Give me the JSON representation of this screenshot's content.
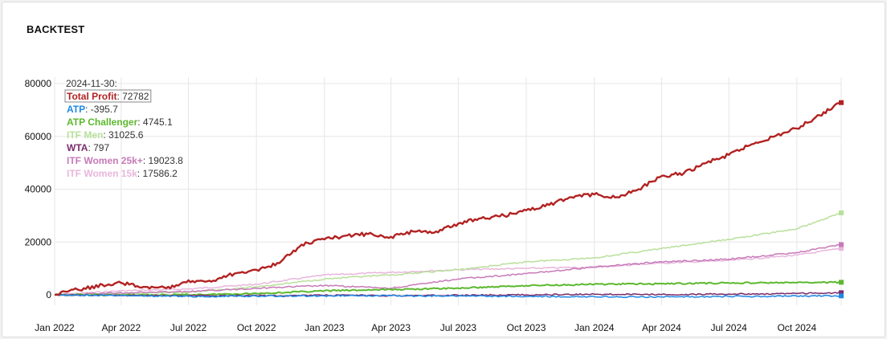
{
  "card": {
    "title": "BACKTEST"
  },
  "colors": {
    "total_profit": "#b22222",
    "atp": "#1e88e5",
    "atp_challenger": "#5cb82e",
    "itf_men": "#b8e09a",
    "wta": "#7b2d6e",
    "itf_women_25k": "#c77ab8",
    "itf_women_15k": "#e8b6dc",
    "grid": "#e6e6e6"
  },
  "chart_data": {
    "type": "line",
    "title": "",
    "xlabel": "",
    "ylabel": "",
    "ylim": [
      -1000,
      80000
    ],
    "x_range": [
      "2022-01-01",
      "2024-11-30"
    ],
    "grid": true,
    "legend_placement": "top-left",
    "x_ticks": [
      "Jan 2022",
      "Apr 2022",
      "Jul 2022",
      "Oct 2022",
      "Jan 2023",
      "Apr 2023",
      "Jul 2023",
      "Oct 2023",
      "Jan 2024",
      "Apr 2024",
      "Jul 2024",
      "Oct 2024"
    ],
    "y_ticks": [
      "0",
      "20000",
      "40000",
      "60000",
      "80000"
    ],
    "legend": {
      "date": "2024-11-30:",
      "entries": [
        {
          "name": "Total Profit",
          "value": "72782",
          "color_key": "total_profit",
          "highlighted": true
        },
        {
          "name": "ATP",
          "value": "-395.7",
          "color_key": "atp",
          "highlighted": false
        },
        {
          "name": "ATP Challenger",
          "value": "4745.1",
          "color_key": "atp_challenger",
          "highlighted": false
        },
        {
          "name": "ITF Men",
          "value": "31025.6",
          "color_key": "itf_men",
          "highlighted": false
        },
        {
          "name": "WTA",
          "value": "797",
          "color_key": "wta",
          "highlighted": false
        },
        {
          "name": "ITF Women 25k+",
          "value": "19023.8",
          "color_key": "itf_women_25k",
          "highlighted": false
        },
        {
          "name": "ITF Women 15k",
          "value": "17586.2",
          "color_key": "itf_women_15k",
          "highlighted": false
        }
      ]
    },
    "series": [
      {
        "name": "ITF Women 15k",
        "color_key": "itf_women_15k",
        "width": 1.5,
        "points": [
          [
            "2022-01-01",
            0
          ],
          [
            "2022-04-01",
            1500
          ],
          [
            "2022-07-01",
            2200
          ],
          [
            "2022-10-01",
            4000
          ],
          [
            "2023-01-01",
            7500
          ],
          [
            "2023-04-01",
            8500
          ],
          [
            "2023-07-01",
            9500
          ],
          [
            "2023-10-01",
            10000
          ],
          [
            "2024-01-01",
            10500
          ],
          [
            "2024-04-01",
            12000
          ],
          [
            "2024-07-01",
            13000
          ],
          [
            "2024-10-01",
            15000
          ],
          [
            "2024-11-30",
            17586.2
          ]
        ]
      },
      {
        "name": "ITF Men",
        "color_key": "itf_men",
        "width": 1.5,
        "points": [
          [
            "2022-01-01",
            0
          ],
          [
            "2022-04-01",
            500
          ],
          [
            "2022-07-01",
            1000
          ],
          [
            "2022-10-01",
            3000
          ],
          [
            "2023-01-01",
            6000
          ],
          [
            "2023-04-01",
            7500
          ],
          [
            "2023-07-01",
            9500
          ],
          [
            "2023-10-01",
            12500
          ],
          [
            "2024-01-01",
            14000
          ],
          [
            "2024-04-01",
            17500
          ],
          [
            "2024-07-01",
            21000
          ],
          [
            "2024-10-01",
            25000
          ],
          [
            "2024-11-30",
            31025.6
          ]
        ]
      },
      {
        "name": "ITF Women 25k+",
        "color_key": "itf_women_25k",
        "width": 1.5,
        "points": [
          [
            "2022-01-01",
            0
          ],
          [
            "2022-04-01",
            800
          ],
          [
            "2022-07-01",
            1200
          ],
          [
            "2022-10-01",
            2500
          ],
          [
            "2023-01-01",
            3500
          ],
          [
            "2023-04-01",
            2500
          ],
          [
            "2023-07-01",
            6000
          ],
          [
            "2023-10-01",
            8000
          ],
          [
            "2024-01-01",
            10500
          ],
          [
            "2024-04-01",
            12500
          ],
          [
            "2024-07-01",
            13500
          ],
          [
            "2024-10-01",
            16000
          ],
          [
            "2024-11-30",
            19023.8
          ]
        ]
      },
      {
        "name": "ATP Challenger",
        "color_key": "atp_challenger",
        "width": 2,
        "points": [
          [
            "2022-01-01",
            0
          ],
          [
            "2022-04-01",
            -100
          ],
          [
            "2022-07-01",
            0
          ],
          [
            "2022-10-01",
            500
          ],
          [
            "2023-01-01",
            1500
          ],
          [
            "2023-04-01",
            2000
          ],
          [
            "2023-07-01",
            2500
          ],
          [
            "2023-10-01",
            3500
          ],
          [
            "2024-01-01",
            4000
          ],
          [
            "2024-04-01",
            4200
          ],
          [
            "2024-07-01",
            4500
          ],
          [
            "2024-10-01",
            4600
          ],
          [
            "2024-11-30",
            4745.1
          ]
        ]
      },
      {
        "name": "WTA",
        "color_key": "wta",
        "width": 1.5,
        "points": [
          [
            "2022-01-01",
            0
          ],
          [
            "2022-04-01",
            -200
          ],
          [
            "2022-07-01",
            -400
          ],
          [
            "2022-10-01",
            -300
          ],
          [
            "2023-01-01",
            -200
          ],
          [
            "2023-04-01",
            -300
          ],
          [
            "2023-07-01",
            -200
          ],
          [
            "2023-10-01",
            0
          ],
          [
            "2024-01-01",
            200
          ],
          [
            "2024-04-01",
            100
          ],
          [
            "2024-07-01",
            300
          ],
          [
            "2024-10-01",
            500
          ],
          [
            "2024-11-30",
            797
          ]
        ]
      },
      {
        "name": "ATP",
        "color_key": "atp",
        "width": 1.5,
        "points": [
          [
            "2022-01-01",
            0
          ],
          [
            "2022-04-01",
            -300
          ],
          [
            "2022-07-01",
            -600
          ],
          [
            "2022-10-01",
            -500
          ],
          [
            "2023-01-01",
            -400
          ],
          [
            "2023-04-01",
            -300
          ],
          [
            "2023-07-01",
            -500
          ],
          [
            "2023-10-01",
            -600
          ],
          [
            "2024-01-01",
            -700
          ],
          [
            "2024-04-01",
            -800
          ],
          [
            "2024-07-01",
            -600
          ],
          [
            "2024-10-01",
            -500
          ],
          [
            "2024-11-30",
            -395.7
          ]
        ]
      },
      {
        "name": "Total Profit",
        "color_key": "total_profit",
        "width": 2.4,
        "points": [
          [
            "2022-01-01",
            0
          ],
          [
            "2022-02-01",
            2000
          ],
          [
            "2022-03-15",
            4000
          ],
          [
            "2022-04-01",
            4500
          ],
          [
            "2022-05-01",
            3000
          ],
          [
            "2022-06-01",
            2500
          ],
          [
            "2022-07-01",
            5500
          ],
          [
            "2022-08-01",
            5000
          ],
          [
            "2022-09-01",
            8000
          ],
          [
            "2022-10-01",
            9500
          ],
          [
            "2022-11-01",
            12000
          ],
          [
            "2022-12-01",
            19000
          ],
          [
            "2023-01-01",
            21000
          ],
          [
            "2023-02-01",
            22500
          ],
          [
            "2023-03-01",
            23000
          ],
          [
            "2023-04-01",
            22000
          ],
          [
            "2023-05-01",
            24000
          ],
          [
            "2023-06-01",
            24000
          ],
          [
            "2023-07-01",
            27000
          ],
          [
            "2023-08-01",
            29000
          ],
          [
            "2023-09-01",
            30000
          ],
          [
            "2023-10-01",
            32000
          ],
          [
            "2023-11-01",
            34000
          ],
          [
            "2023-12-01",
            37000
          ],
          [
            "2024-01-01",
            38000
          ],
          [
            "2024-02-01",
            37000
          ],
          [
            "2024-03-01",
            40000
          ],
          [
            "2024-04-01",
            45000
          ],
          [
            "2024-05-01",
            46000
          ],
          [
            "2024-06-01",
            50000
          ],
          [
            "2024-07-01",
            53000
          ],
          [
            "2024-08-01",
            57000
          ],
          [
            "2024-09-01",
            60000
          ],
          [
            "2024-10-01",
            63000
          ],
          [
            "2024-11-01",
            68000
          ],
          [
            "2024-11-30",
            72782
          ]
        ]
      }
    ]
  }
}
